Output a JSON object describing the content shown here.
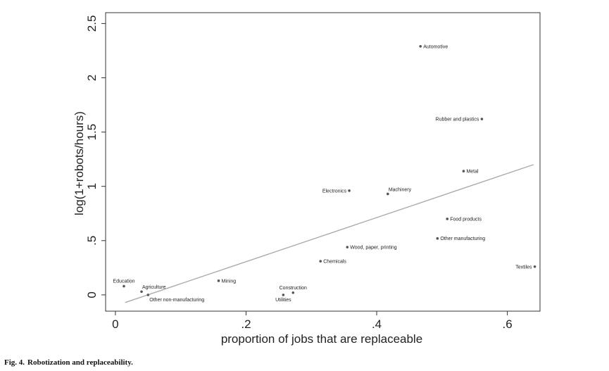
{
  "caption": {
    "number": "Fig. 4.",
    "title": "Robotization and replaceability."
  },
  "chart_data": {
    "type": "scatter",
    "xlabel": "proportion of jobs that are replaceable",
    "ylabel": "log(1+robots/hours)",
    "xlim": [
      -0.015,
      0.65
    ],
    "ylim": [
      -0.15,
      2.6
    ],
    "xticks": [
      {
        "value": 0,
        "label": "0"
      },
      {
        "value": 0.2,
        "label": ".2"
      },
      {
        "value": 0.4,
        "label": ".4"
      },
      {
        "value": 0.6,
        "label": ".6"
      }
    ],
    "yticks": [
      {
        "value": 0,
        "label": "0"
      },
      {
        "value": 0.5,
        "label": ".5"
      },
      {
        "value": 1,
        "label": "1"
      },
      {
        "value": 1.5,
        "label": "1.5"
      },
      {
        "value": 2,
        "label": "2"
      },
      {
        "value": 2.5,
        "label": "2.5"
      }
    ],
    "points": [
      {
        "label": "Automotive",
        "x": 0.467,
        "y": 2.29,
        "anchor": "right"
      },
      {
        "label": "Rubber and plastics",
        "x": 0.561,
        "y": 1.62,
        "anchor": "left"
      },
      {
        "label": "Metal",
        "x": 0.533,
        "y": 1.14,
        "anchor": "right"
      },
      {
        "label": "Electronics",
        "x": 0.358,
        "y": 0.96,
        "anchor": "left"
      },
      {
        "label": "Machinery",
        "x": 0.417,
        "y": 0.93,
        "anchor": "above-right"
      },
      {
        "label": "Food products",
        "x": 0.508,
        "y": 0.7,
        "anchor": "right"
      },
      {
        "label": "Other manufacturing",
        "x": 0.493,
        "y": 0.52,
        "anchor": "right"
      },
      {
        "label": "Wood, paper, printing",
        "x": 0.355,
        "y": 0.44,
        "anchor": "right"
      },
      {
        "label": "Chemicals",
        "x": 0.314,
        "y": 0.31,
        "anchor": "right"
      },
      {
        "label": "Textiles",
        "x": 0.642,
        "y": 0.26,
        "anchor": "left"
      },
      {
        "label": "Mining",
        "x": 0.158,
        "y": 0.13,
        "anchor": "right"
      },
      {
        "label": "Education",
        "x": 0.013,
        "y": 0.08,
        "anchor": "above"
      },
      {
        "label": "Agriculture",
        "x": 0.04,
        "y": 0.03,
        "anchor": "above-right"
      },
      {
        "label": "Other non-manufacturing",
        "x": 0.05,
        "y": 0.0,
        "anchor": "below-right"
      },
      {
        "label": "Construction",
        "x": 0.272,
        "y": 0.02,
        "anchor": "above"
      },
      {
        "label": "Utilities",
        "x": 0.257,
        "y": 0.0,
        "anchor": "below"
      }
    ],
    "fit_line": {
      "x": [
        0.015,
        0.64
      ],
      "y": [
        -0.07,
        1.2
      ]
    },
    "grid": false,
    "legend": "none",
    "marker_color": "#555555",
    "line_color": "#aaaaaa"
  }
}
